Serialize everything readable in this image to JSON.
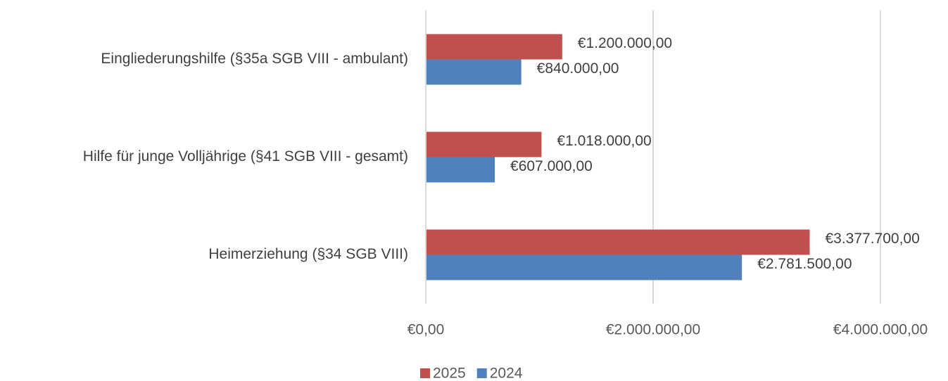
{
  "chart_data": {
    "type": "barh",
    "categories": [
      "Eingliederungshilfe (§35a SGB VIII - ambulant)",
      "Hilfe für junge Volljährige  (§41 SGB VIII - gesamt)",
      "Heimerziehung (§34 SGB VIII)"
    ],
    "series": [
      {
        "name": "2025",
        "color": "#c0504d",
        "values": [
          1200000,
          1018000,
          3377700
        ],
        "value_labels": [
          "€1.200.000,00",
          "€1.018.000,00",
          "€3.377.700,00"
        ]
      },
      {
        "name": "2024",
        "color": "#4f81bd",
        "values": [
          840000,
          607000,
          2781500
        ],
        "value_labels": [
          "€840.000,00",
          "€607.000,00",
          "€2.781.500,00"
        ]
      }
    ],
    "xlim": [
      0,
      4000000
    ],
    "xticks": [
      {
        "value": 0,
        "label": "€0,00"
      },
      {
        "value": 2000000,
        "label": "€2.000.000,00"
      },
      {
        "value": 4000000,
        "label": "€4.000.000,00"
      }
    ],
    "grid": true,
    "legend": "bottom"
  }
}
